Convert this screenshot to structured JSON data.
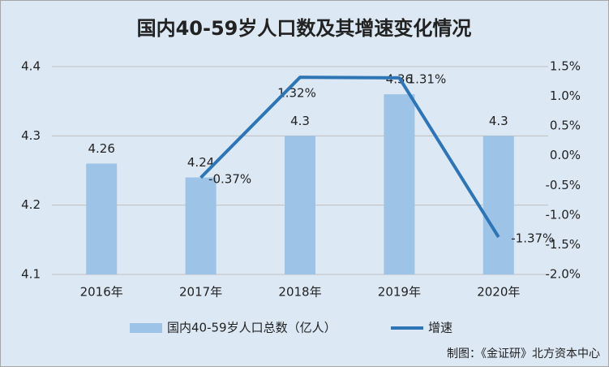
{
  "chart_data": {
    "type": "bar",
    "title": "国内40-59岁人口数及其增速变化情况",
    "categories": [
      "2016年",
      "2017年",
      "2018年",
      "2019年",
      "2020年"
    ],
    "series": [
      {
        "name": "国内40-59岁人口总数（亿人）",
        "type": "bar",
        "color": "#9dc3e6",
        "values": [
          4.26,
          4.24,
          4.3,
          4.36,
          4.3
        ]
      },
      {
        "name": "增速",
        "type": "line",
        "axis": "y2",
        "color": "#2e75b6",
        "values": [
          null,
          -0.37,
          1.32,
          1.31,
          -1.37
        ],
        "value_labels": [
          null,
          "-0.37%",
          "1.32%",
          "1.31%",
          "-1.37%"
        ]
      }
    ],
    "ylim": [
      4.1,
      4.4
    ],
    "yticks": [
      4.1,
      4.2,
      4.3,
      4.4
    ],
    "y2lim": [
      -2.0,
      1.5
    ],
    "y2ticks": [
      {
        "value": -2.0,
        "label": "-2.0%"
      },
      {
        "value": -1.5,
        "label": "-1.5%"
      },
      {
        "value": -1.0,
        "label": "-1.0%"
      },
      {
        "value": -0.5,
        "label": "-0.5%"
      },
      {
        "value": 0,
        "label": "0.0%"
      },
      {
        "value": 0.5,
        "label": "0.5%"
      },
      {
        "value": 1.0,
        "label": "1.0%"
      },
      {
        "value": 1.5,
        "label": "1.5%"
      }
    ],
    "grid": true,
    "legend": "bottom",
    "annotations": [
      "制图：《金证研》北方资本中心"
    ]
  }
}
